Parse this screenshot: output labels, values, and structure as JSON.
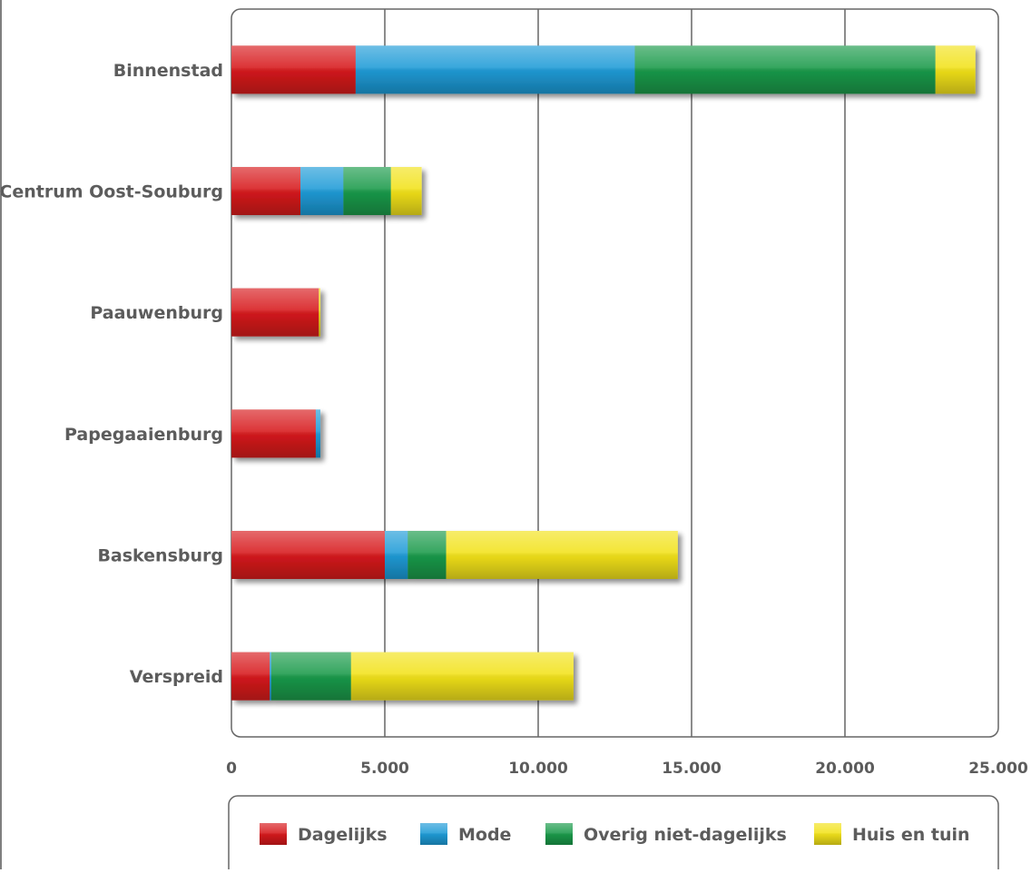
{
  "chart_data": {
    "type": "bar",
    "orientation": "horizontal",
    "stacked": true,
    "categories": [
      "Binnenstad",
      "Centrum Oost-Souburg",
      "Paauwenburg",
      "Papegaaienburg",
      "Baskensburg",
      "Verspreid"
    ],
    "series": [
      {
        "name": "Dagelijks",
        "color": "#d7191c",
        "values": [
          4050,
          2250,
          2850,
          2750,
          5000,
          1250
        ]
      },
      {
        "name": "Mode",
        "color": "#1e9bd7",
        "values": [
          9100,
          1400,
          0,
          150,
          750,
          50
        ]
      },
      {
        "name": "Overig niet-dagelijks",
        "color": "#1a9a4a",
        "values": [
          9800,
          1550,
          0,
          0,
          1250,
          2600
        ]
      },
      {
        "name": "Huis en tuin",
        "color": "#f2e21a",
        "values": [
          1300,
          1000,
          50,
          0,
          7550,
          7250
        ]
      }
    ],
    "xlim": [
      0,
      25000
    ],
    "xticks": [
      0,
      5000,
      10000,
      15000,
      20000,
      25000
    ],
    "xtick_labels": [
      "0",
      "5.000",
      "10.000",
      "15.000",
      "20.000",
      "25.000"
    ],
    "grid": true,
    "legend_position": "bottom"
  }
}
